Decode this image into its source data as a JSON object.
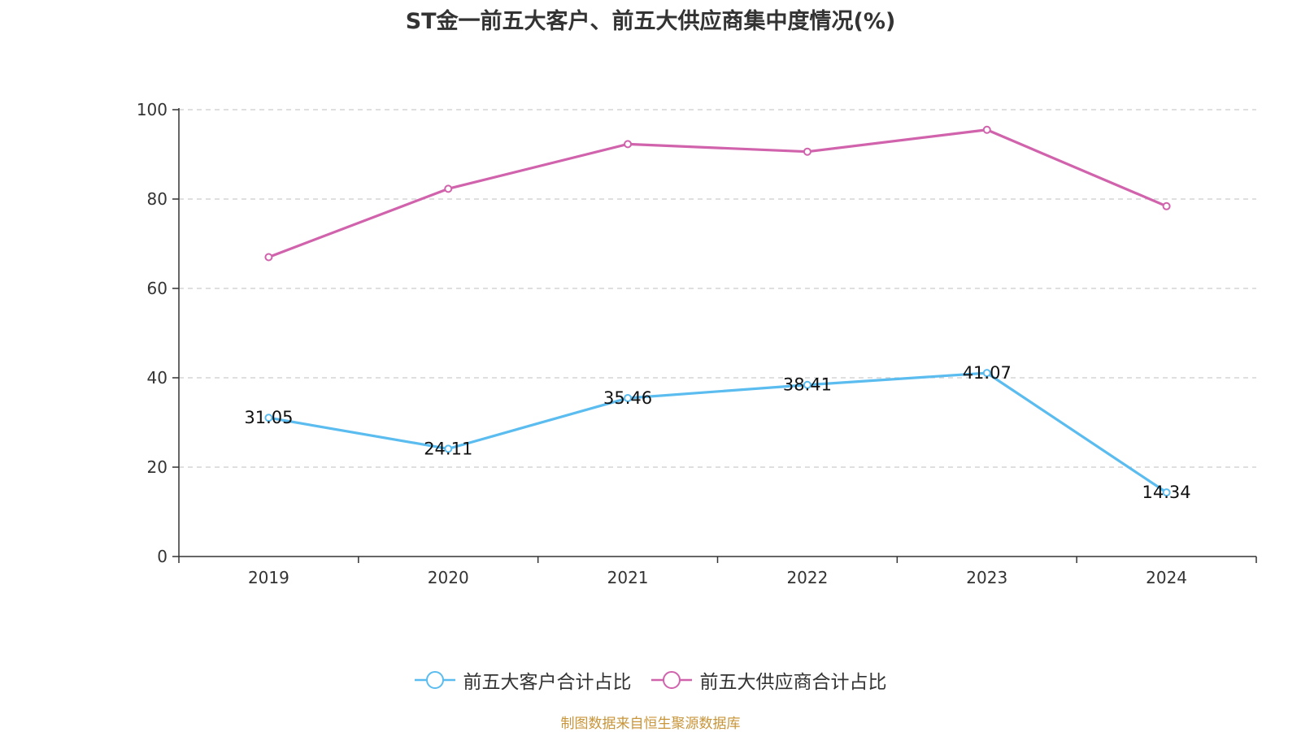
{
  "chart_data": {
    "type": "line",
    "title": "ST金一前五大客户、前五大供应商集中度情况(%)",
    "categories": [
      "2019",
      "2020",
      "2021",
      "2022",
      "2023",
      "2024"
    ],
    "ylim": [
      0,
      100
    ],
    "yticks": [
      0,
      20,
      40,
      60,
      80,
      100
    ],
    "grid": true,
    "legend_position": "bottom-center",
    "series": [
      {
        "name": "前五大客户合计占比",
        "color": "#5bbcf0",
        "values": [
          31.05,
          24.11,
          35.46,
          38.41,
          41.07,
          14.34
        ],
        "labels": [
          "31.05",
          "24.11",
          "35.46",
          "38.41",
          "41.07",
          "14.34"
        ]
      },
      {
        "name": "前五大供应商合计占比",
        "color": "#d163ad",
        "values": [
          67.0,
          82.3,
          92.3,
          90.6,
          95.5,
          78.4
        ],
        "labels": null
      }
    ]
  },
  "footer": {
    "source": "制图数据来自恒生聚源数据库"
  }
}
